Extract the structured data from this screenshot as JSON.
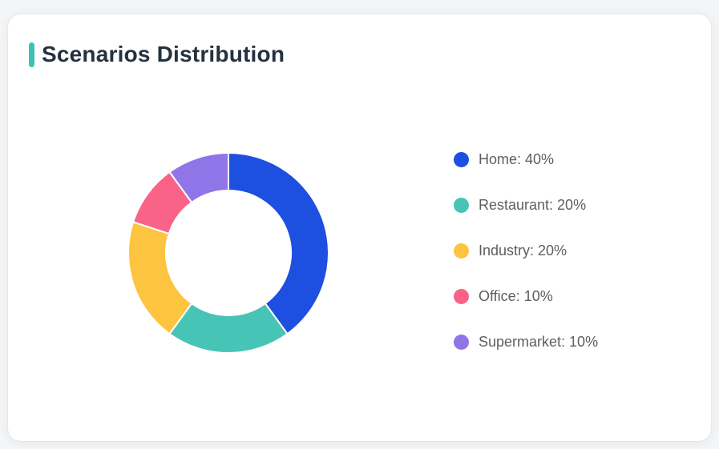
{
  "page": {
    "background_color": "#f4f5f7",
    "card_background_color": "#ffffff"
  },
  "header": {
    "title": "Scenarios Distribution",
    "accent_color": "#38c3b4",
    "title_color": "#243140"
  },
  "chart_data": {
    "type": "pie",
    "subtype": "donut",
    "title": "Scenarios Distribution",
    "direction": "clockwise",
    "start_angle_deg": 0,
    "inner_radius_ratio": 0.62,
    "segment_gap_color": "#ffffff",
    "legend_position": "right",
    "legend_text_color": "#5e5e5e",
    "segments": [
      {
        "label": "Home",
        "value": 40,
        "percent_text": "40%",
        "legend_label": "Home: 40%",
        "color": "#1d4fe0"
      },
      {
        "label": "Restaurant",
        "value": 20,
        "percent_text": "20%",
        "legend_label": "Restaurant: 20%",
        "color": "#47c4b6"
      },
      {
        "label": "Industry",
        "value": 20,
        "percent_text": "20%",
        "legend_label": "Industry: 20%",
        "color": "#fdc43f"
      },
      {
        "label": "Office",
        "value": 10,
        "percent_text": "10%",
        "legend_label": "Office: 10%",
        "color": "#fa6388"
      },
      {
        "label": "Supermarket",
        "value": 10,
        "percent_text": "10%",
        "legend_label": "Supermarket: 10%",
        "color": "#8f75e8"
      }
    ]
  }
}
